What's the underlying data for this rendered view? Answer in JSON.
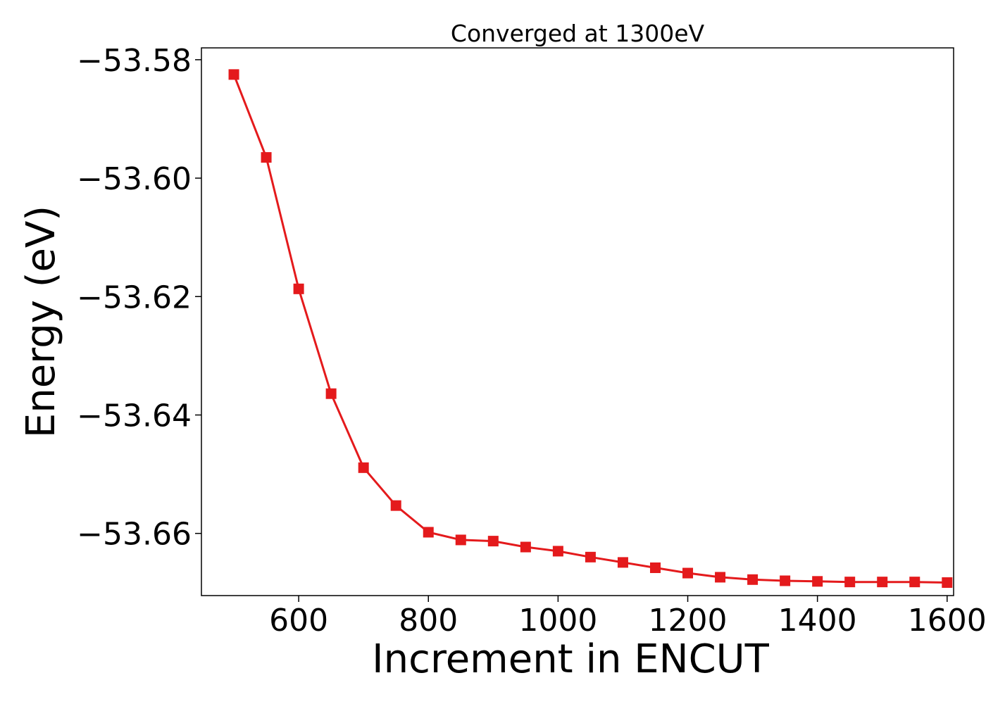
{
  "chart_data": {
    "type": "line",
    "title": "Converged at 1300eV",
    "xlabel": "Increment in ENCUT",
    "ylabel": "Energy (eV)",
    "xlim": [
      450,
      1610
    ],
    "ylim": [
      -53.6705,
      -53.578
    ],
    "x_ticks": [
      600,
      800,
      1000,
      1200,
      1400,
      1600
    ],
    "y_ticks": [
      -53.58,
      -53.6,
      -53.62,
      -53.64,
      -53.66
    ],
    "x_tick_labels": [
      "600",
      "800",
      "1000",
      "1200",
      "1400",
      "1600"
    ],
    "y_tick_labels": [
      "−53.58",
      "−53.60",
      "−53.62",
      "−53.64",
      "−53.66"
    ],
    "grid": false,
    "series": [
      {
        "color": "#e41a1c",
        "marker": "square",
        "x": [
          500,
          550,
          600,
          650,
          700,
          750,
          800,
          850,
          900,
          950,
          1000,
          1050,
          1100,
          1150,
          1200,
          1250,
          1300,
          1350,
          1400,
          1450,
          1500,
          1550,
          1600
        ],
        "y": [
          -53.5825,
          -53.5965,
          -53.6187,
          -53.6364,
          -53.6489,
          -53.6553,
          -53.6598,
          -53.6611,
          -53.6613,
          -53.6623,
          -53.663,
          -53.664,
          -53.6649,
          -53.6658,
          -53.6667,
          -53.6674,
          -53.6678,
          -53.668,
          -53.6681,
          -53.6682,
          -53.6682,
          -53.6682,
          -53.6683
        ]
      }
    ]
  }
}
